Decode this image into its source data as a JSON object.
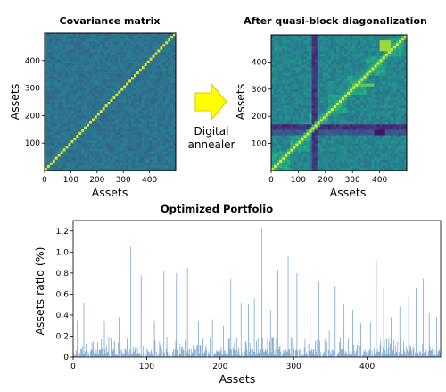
{
  "left_panel": {
    "title": "Covariance matrix",
    "xlabel": "Assets",
    "ylabel": "Assets",
    "xticks": [
      0,
      100,
      200,
      300,
      400
    ],
    "yticks": [
      100,
      200,
      300,
      400
    ]
  },
  "transform": {
    "line1": "Digital",
    "line2": "annealer",
    "arrow_color": "#ffff00"
  },
  "right_panel": {
    "title": "After quasi-block diagonalization",
    "xlabel": "Assets",
    "ylabel": "Assets",
    "xticks": [
      0,
      100,
      200,
      300,
      400
    ],
    "yticks": [
      100,
      200,
      300,
      400
    ]
  },
  "chart_data": [
    {
      "type": "heatmap",
      "title": "Covariance matrix",
      "xlabel": "Assets",
      "ylabel": "Assets",
      "n": 500,
      "xlim": [
        0,
        500
      ],
      "ylim": [
        0,
        500
      ],
      "colormap": "viridis",
      "description": "noisy mid-level (teal) covariance with a bright yellow main diagonal"
    },
    {
      "type": "heatmap",
      "title": "After quasi-block diagonalization",
      "xlabel": "Assets",
      "ylabel": "Assets",
      "n": 500,
      "xlim": [
        0,
        500
      ],
      "ylim": [
        0,
        500
      ],
      "colormap": "viridis",
      "description": "reordered matrix showing block structure, bright diagonal, dark stripes near 150 and 400"
    },
    {
      "type": "bar",
      "title": "Optimized Portfolio",
      "xlabel": "Assets",
      "ylabel": "Assets ratio (%)",
      "xlim": [
        0,
        500
      ],
      "ylim": [
        0,
        1.3
      ],
      "xticks": [
        0,
        100,
        200,
        300,
        400
      ],
      "yticks": [
        0,
        0.2,
        0.4,
        0.6,
        0.8,
        1.0,
        1.2
      ],
      "color": "#7ea7d1",
      "peaks": [
        {
          "x": 5,
          "y": 0.35
        },
        {
          "x": 14,
          "y": 0.52
        },
        {
          "x": 42,
          "y": 0.34
        },
        {
          "x": 62,
          "y": 0.38
        },
        {
          "x": 78,
          "y": 1.05
        },
        {
          "x": 92,
          "y": 0.78
        },
        {
          "x": 110,
          "y": 0.35
        },
        {
          "x": 123,
          "y": 0.82
        },
        {
          "x": 140,
          "y": 0.8
        },
        {
          "x": 155,
          "y": 0.85
        },
        {
          "x": 170,
          "y": 0.34
        },
        {
          "x": 189,
          "y": 0.36
        },
        {
          "x": 204,
          "y": 0.3
        },
        {
          "x": 214,
          "y": 0.75
        },
        {
          "x": 228,
          "y": 0.52
        },
        {
          "x": 238,
          "y": 0.5
        },
        {
          "x": 246,
          "y": 0.56
        },
        {
          "x": 256,
          "y": 1.23
        },
        {
          "x": 268,
          "y": 0.45
        },
        {
          "x": 278,
          "y": 0.83
        },
        {
          "x": 292,
          "y": 0.96
        },
        {
          "x": 304,
          "y": 0.8
        },
        {
          "x": 322,
          "y": 0.45
        },
        {
          "x": 334,
          "y": 0.72
        },
        {
          "x": 348,
          "y": 0.25
        },
        {
          "x": 356,
          "y": 0.68
        },
        {
          "x": 368,
          "y": 0.5
        },
        {
          "x": 380,
          "y": 0.45
        },
        {
          "x": 391,
          "y": 0.32
        },
        {
          "x": 404,
          "y": 0.33
        },
        {
          "x": 412,
          "y": 0.92
        },
        {
          "x": 422,
          "y": 0.65
        },
        {
          "x": 432,
          "y": 0.38
        },
        {
          "x": 444,
          "y": 0.48
        },
        {
          "x": 456,
          "y": 0.58
        },
        {
          "x": 466,
          "y": 0.66
        },
        {
          "x": 476,
          "y": 0.75
        },
        {
          "x": 484,
          "y": 0.42
        },
        {
          "x": 494,
          "y": 0.38
        }
      ],
      "baseline_range": [
        0.0,
        0.2
      ]
    }
  ]
}
